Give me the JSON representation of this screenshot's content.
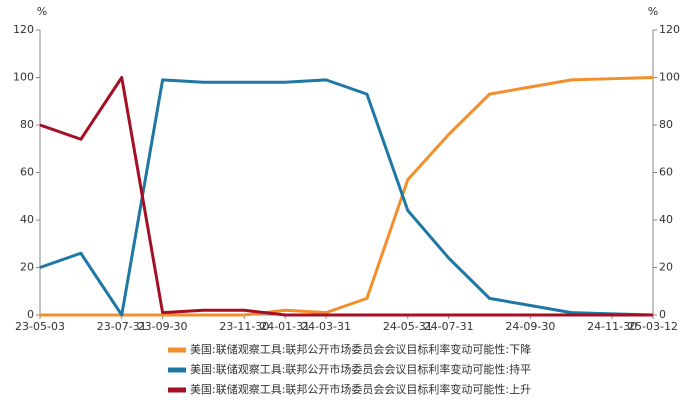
{
  "chart_data": {
    "type": "line",
    "y_unit": "%",
    "y2_unit": "%",
    "categories": [
      "23-05-03",
      null,
      "23-07-31",
      "23-09-30",
      null,
      "23-11-30",
      "24-01-31",
      "24-03-31",
      null,
      "24-05-31",
      "24-07-31",
      null,
      "24-09-30",
      null,
      "24-11-30",
      "25-03-12"
    ],
    "series": [
      {
        "name": "美国:联储观察工具:联邦公开市场委员会会议目标利率变动可能性:下降",
        "color": "#f28e2b",
        "values": [
          0,
          0,
          0,
          0,
          0,
          0,
          2,
          1,
          7,
          57,
          76,
          93,
          96,
          99,
          99.5,
          100
        ]
      },
      {
        "name": "美国:联储观察工具:联邦公开市场委员会会议目标利率变动可能性:持平",
        "color": "#1f77a4",
        "values": [
          20,
          26,
          0,
          99,
          98,
          98,
          98,
          99,
          93,
          44,
          24,
          7,
          4,
          1,
          0.5,
          0
        ]
      },
      {
        "name": "美国:联储观察工具:联邦公开市场委员会会议目标利率变动可能性:上升",
        "color": "#a50f25",
        "values": [
          80,
          74,
          100,
          1,
          2,
          2,
          0,
          0,
          0,
          0,
          0,
          0,
          0,
          0,
          0,
          0
        ]
      }
    ],
    "ylim": [
      0,
      120
    ],
    "yticks": [
      0,
      20,
      40,
      60,
      80,
      100,
      120
    ],
    "y2lim": [
      0,
      120
    ],
    "y2ticks": [
      0,
      20,
      40,
      60,
      80,
      100,
      120
    ]
  }
}
